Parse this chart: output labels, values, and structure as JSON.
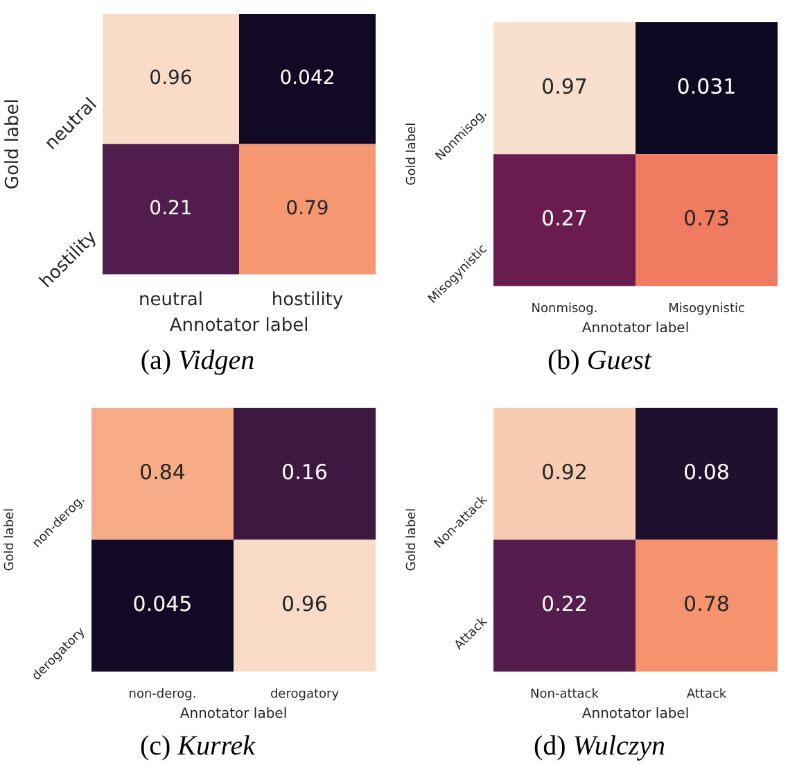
{
  "chart_data": [
    {
      "type": "heatmap",
      "title": "(a) Vidgen",
      "xlabel": "Annotator label",
      "ylabel": "Gold label",
      "categories": [
        "neutral",
        "hostility"
      ],
      "y_categories": [
        "neutral",
        "hostility"
      ],
      "cells": [
        [
          0.96,
          0.042
        ],
        [
          0.21,
          0.79
        ]
      ],
      "cell_labels": [
        [
          "0.96",
          "0.042"
        ],
        [
          "0.21",
          "0.79"
        ]
      ]
    },
    {
      "type": "heatmap",
      "title": "(b) Guest",
      "xlabel": "Annotator label",
      "ylabel": "Gold label",
      "categories": [
        "Nonmisog.",
        "Misogynistic"
      ],
      "y_categories": [
        "Nonmisog.",
        "Misogynistic"
      ],
      "cells": [
        [
          0.97,
          0.031
        ],
        [
          0.27,
          0.73
        ]
      ],
      "cell_labels": [
        [
          "0.97",
          "0.031"
        ],
        [
          "0.27",
          "0.73"
        ]
      ]
    },
    {
      "type": "heatmap",
      "title": "(c) Kurrek",
      "xlabel": "Annotator label",
      "ylabel": "Gold label",
      "categories": [
        "non-derog.",
        "derogatory"
      ],
      "y_categories": [
        "non-derog.",
        "derogatory"
      ],
      "cells": [
        [
          0.84,
          0.16
        ],
        [
          0.045,
          0.96
        ]
      ],
      "cell_labels": [
        [
          "0.84",
          "0.16"
        ],
        [
          "0.045",
          "0.96"
        ]
      ]
    },
    {
      "type": "heatmap",
      "title": "(d) Wulczyn",
      "xlabel": "Annotator label",
      "ylabel": "Gold label",
      "categories": [
        "Non-attack",
        "Attack"
      ],
      "y_categories": [
        "Non-attack",
        "Attack"
      ],
      "cells": [
        [
          0.92,
          0.08
        ],
        [
          0.22,
          0.78
        ]
      ],
      "cell_labels": [
        [
          "0.92",
          "0.08"
        ],
        [
          "0.22",
          "0.78"
        ]
      ]
    }
  ]
}
